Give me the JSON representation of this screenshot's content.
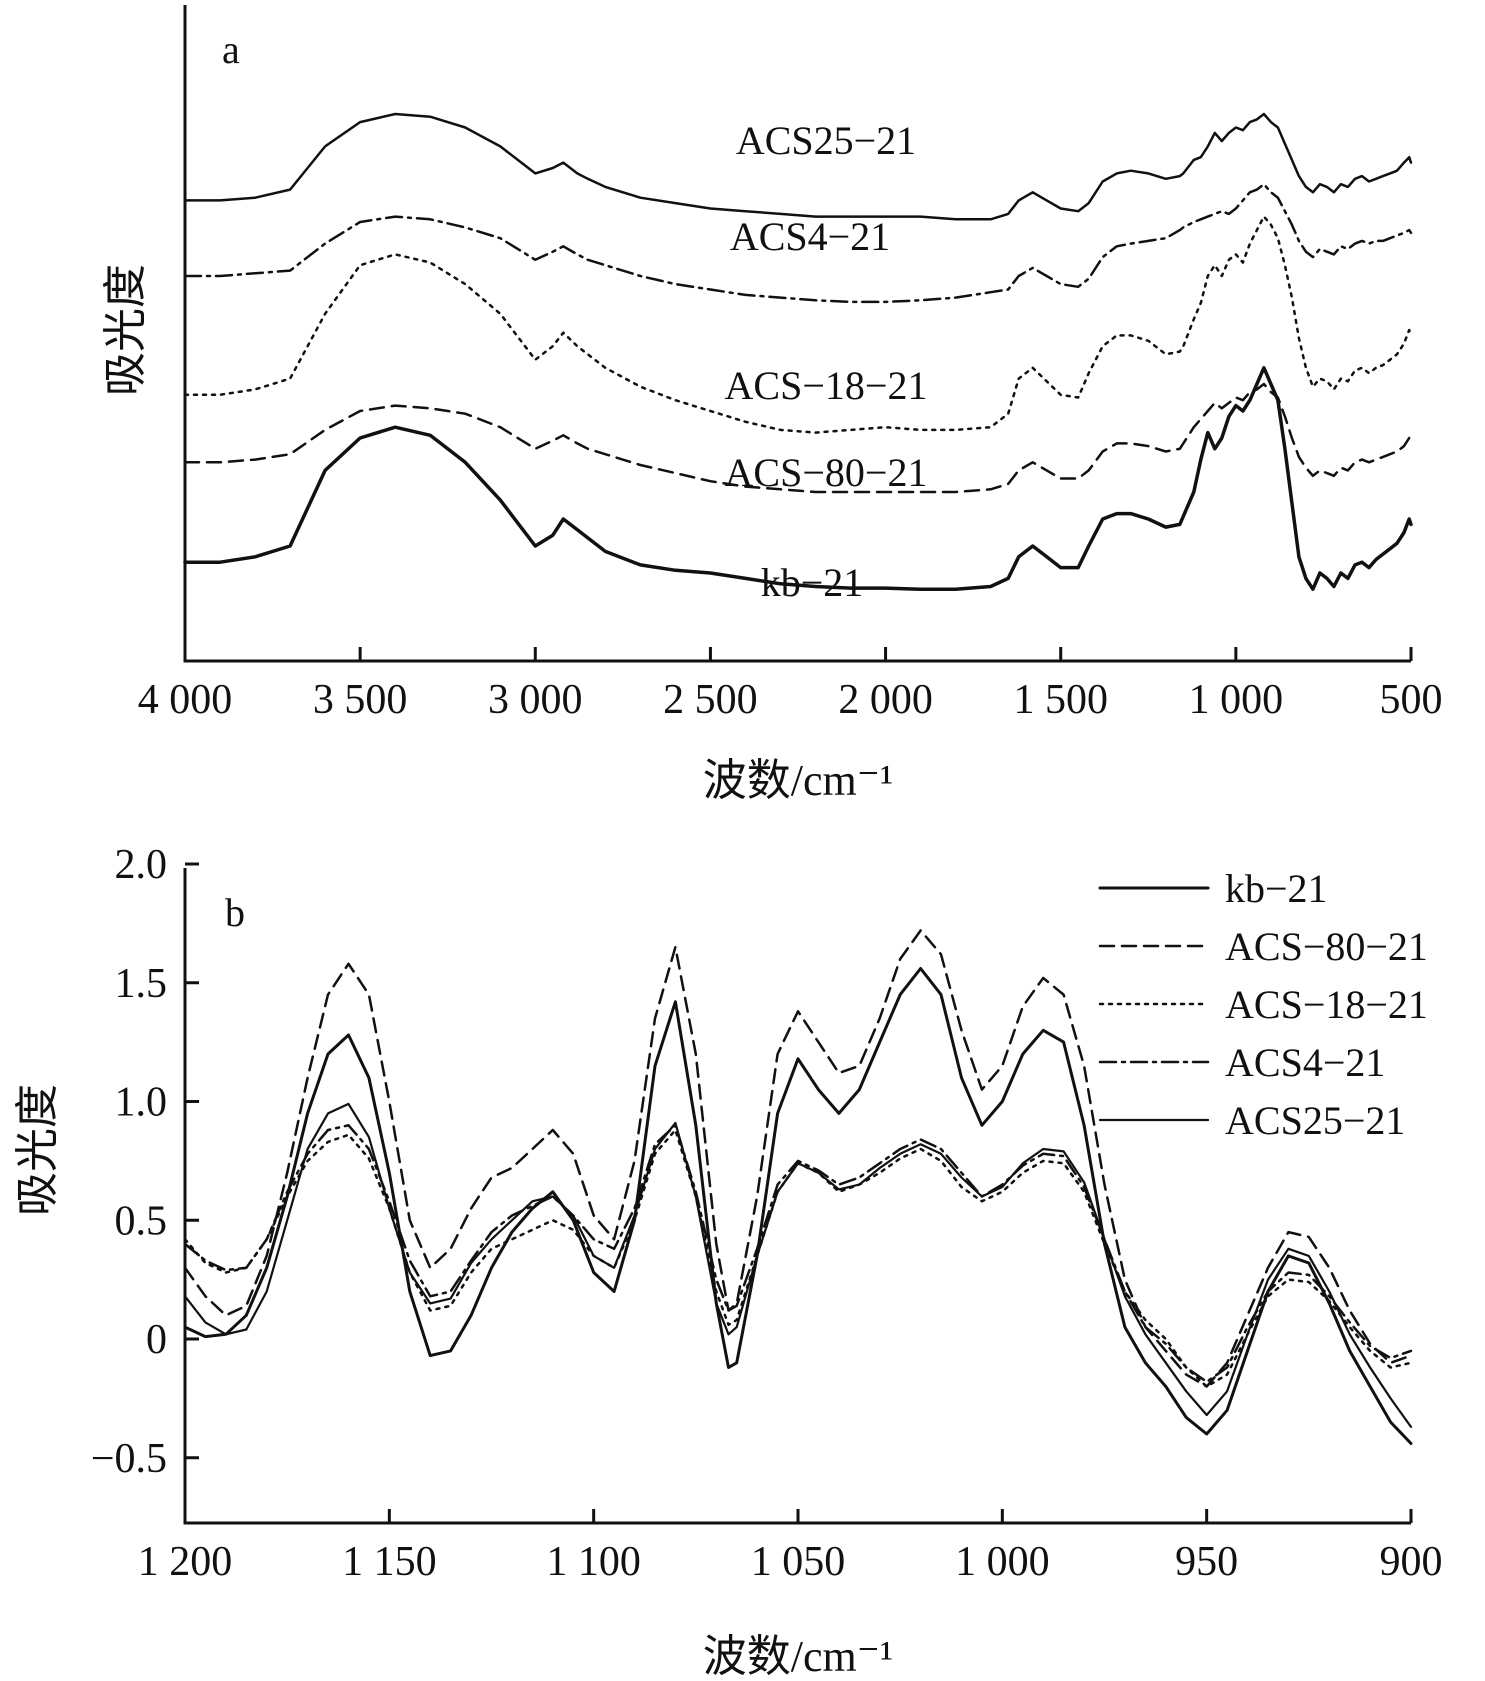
{
  "chart_data": [
    {
      "panel": "a",
      "type": "line",
      "xlabel": "波数/cm⁻¹",
      "ylabel": "吸光度",
      "xlim": [
        4000,
        500
      ],
      "x_reversed": true,
      "x_ticks": [
        4000,
        3500,
        3000,
        2500,
        2000,
        1500,
        1000,
        500
      ],
      "x_tick_labels": [
        "4 000",
        "3 500",
        "3 000",
        "2 500",
        "2 000",
        "1 500",
        "1 000",
        "500"
      ],
      "y_ticks_shown": false,
      "grid": false,
      "x": [
        4000,
        3900,
        3800,
        3700,
        3600,
        3500,
        3400,
        3300,
        3200,
        3100,
        3000,
        2950,
        2920,
        2880,
        2850,
        2800,
        2700,
        2600,
        2500,
        2400,
        2300,
        2200,
        2100,
        2000,
        1900,
        1800,
        1700,
        1650,
        1620,
        1580,
        1540,
        1500,
        1450,
        1420,
        1380,
        1340,
        1300,
        1250,
        1200,
        1160,
        1150,
        1120,
        1100,
        1080,
        1060,
        1040,
        1020,
        1000,
        980,
        960,
        940,
        920,
        900,
        880,
        860,
        840,
        820,
        800,
        780,
        760,
        740,
        720,
        700,
        680,
        660,
        640,
        620,
        600,
        580,
        560,
        540,
        520,
        505,
        500
      ],
      "series": [
        {
          "name": "ACS25-21",
          "dash": "solid",
          "stroke_width": 2.5,
          "values": [
            0.74,
            0.74,
            0.745,
            0.76,
            0.84,
            0.885,
            0.9,
            0.895,
            0.875,
            0.84,
            0.79,
            0.8,
            0.81,
            0.79,
            0.78,
            0.765,
            0.745,
            0.735,
            0.725,
            0.72,
            0.715,
            0.71,
            0.71,
            0.71,
            0.71,
            0.705,
            0.705,
            0.715,
            0.74,
            0.755,
            0.74,
            0.725,
            0.72,
            0.735,
            0.775,
            0.79,
            0.795,
            0.79,
            0.78,
            0.785,
            0.79,
            0.815,
            0.82,
            0.84,
            0.865,
            0.85,
            0.865,
            0.875,
            0.87,
            0.885,
            0.89,
            0.9,
            0.885,
            0.875,
            0.845,
            0.815,
            0.785,
            0.765,
            0.755,
            0.77,
            0.765,
            0.755,
            0.77,
            0.765,
            0.78,
            0.785,
            0.775,
            0.78,
            0.785,
            0.79,
            0.795,
            0.81,
            0.82,
            0.81
          ]
        },
        {
          "name": "ACS4-21",
          "dash": "dashdot",
          "stroke_width": 2.5,
          "values": [
            0.6,
            0.6,
            0.605,
            0.61,
            0.66,
            0.7,
            0.71,
            0.705,
            0.69,
            0.67,
            0.63,
            0.645,
            0.655,
            0.64,
            0.63,
            0.62,
            0.6,
            0.585,
            0.575,
            0.565,
            0.56,
            0.555,
            0.552,
            0.552,
            0.555,
            0.56,
            0.57,
            0.575,
            0.6,
            0.615,
            0.6,
            0.585,
            0.58,
            0.595,
            0.635,
            0.655,
            0.66,
            0.665,
            0.67,
            0.685,
            0.69,
            0.7,
            0.705,
            0.71,
            0.715,
            0.72,
            0.715,
            0.725,
            0.74,
            0.755,
            0.76,
            0.77,
            0.755,
            0.745,
            0.72,
            0.695,
            0.665,
            0.645,
            0.635,
            0.65,
            0.645,
            0.64,
            0.655,
            0.65,
            0.66,
            0.665,
            0.66,
            0.665,
            0.665,
            0.67,
            0.675,
            0.68,
            0.685,
            0.68
          ]
        },
        {
          "name": "ACS-18-21",
          "dash": "dotted",
          "stroke_width": 2.5,
          "values": [
            0.38,
            0.38,
            0.39,
            0.41,
            0.53,
            0.62,
            0.64,
            0.625,
            0.585,
            0.53,
            0.445,
            0.47,
            0.495,
            0.47,
            0.455,
            0.43,
            0.395,
            0.37,
            0.35,
            0.33,
            0.315,
            0.31,
            0.315,
            0.32,
            0.315,
            0.315,
            0.32,
            0.345,
            0.41,
            0.43,
            0.405,
            0.38,
            0.375,
            0.42,
            0.47,
            0.49,
            0.49,
            0.48,
            0.455,
            0.46,
            0.47,
            0.52,
            0.55,
            0.6,
            0.62,
            0.6,
            0.63,
            0.64,
            0.625,
            0.66,
            0.685,
            0.71,
            0.695,
            0.67,
            0.62,
            0.56,
            0.485,
            0.43,
            0.395,
            0.41,
            0.405,
            0.39,
            0.41,
            0.405,
            0.425,
            0.43,
            0.42,
            0.43,
            0.435,
            0.445,
            0.455,
            0.475,
            0.5,
            0.49
          ]
        },
        {
          "name": "ACS-80-21",
          "dash": "dashed",
          "stroke_width": 2.5,
          "values": [
            0.255,
            0.255,
            0.26,
            0.27,
            0.315,
            0.35,
            0.36,
            0.355,
            0.345,
            0.32,
            0.28,
            0.295,
            0.305,
            0.29,
            0.28,
            0.27,
            0.25,
            0.235,
            0.22,
            0.21,
            0.205,
            0.2,
            0.2,
            0.2,
            0.2,
            0.2,
            0.205,
            0.215,
            0.24,
            0.255,
            0.24,
            0.225,
            0.225,
            0.24,
            0.275,
            0.29,
            0.29,
            0.285,
            0.275,
            0.28,
            0.29,
            0.32,
            0.335,
            0.35,
            0.365,
            0.355,
            0.365,
            0.375,
            0.37,
            0.385,
            0.39,
            0.4,
            0.385,
            0.375,
            0.34,
            0.3,
            0.265,
            0.245,
            0.23,
            0.24,
            0.235,
            0.23,
            0.245,
            0.24,
            0.255,
            0.26,
            0.255,
            0.26,
            0.265,
            0.27,
            0.275,
            0.285,
            0.3,
            0.29
          ]
        },
        {
          "name": "kb-21",
          "dash": "solid",
          "stroke_width": 3.5,
          "values": [
            0.07,
            0.07,
            0.08,
            0.1,
            0.24,
            0.3,
            0.32,
            0.305,
            0.255,
            0.185,
            0.1,
            0.12,
            0.15,
            0.13,
            0.115,
            0.09,
            0.065,
            0.055,
            0.05,
            0.04,
            0.03,
            0.025,
            0.022,
            0.022,
            0.02,
            0.02,
            0.025,
            0.04,
            0.08,
            0.1,
            0.08,
            0.06,
            0.06,
            0.1,
            0.15,
            0.16,
            0.16,
            0.15,
            0.135,
            0.14,
            0.155,
            0.2,
            0.26,
            0.31,
            0.28,
            0.3,
            0.34,
            0.36,
            0.35,
            0.37,
            0.4,
            0.43,
            0.4,
            0.37,
            0.28,
            0.18,
            0.08,
            0.04,
            0.02,
            0.05,
            0.04,
            0.025,
            0.05,
            0.04,
            0.065,
            0.07,
            0.06,
            0.075,
            0.085,
            0.095,
            0.105,
            0.125,
            0.15,
            0.14
          ]
        }
      ],
      "trace_labels": [
        "ACS25−21",
        "ACS4−21",
        "ACS−18−21",
        "ACS−80−21",
        "kb−21"
      ]
    },
    {
      "panel": "b",
      "type": "line",
      "xlabel": "波数/cm⁻¹",
      "ylabel": "吸光度",
      "xlim": [
        1200,
        900
      ],
      "x_reversed": true,
      "x_ticks": [
        1200,
        1150,
        1100,
        1050,
        1000,
        950,
        900
      ],
      "x_tick_labels": [
        "1 200",
        "1 150",
        "1 100",
        "1 050",
        "1 000",
        "950",
        "900"
      ],
      "ylim": [
        -0.75,
        2.0
      ],
      "y_ticks": [
        -0.5,
        0,
        0.5,
        1.0,
        1.5,
        2.0
      ],
      "y_tick_labels": [
        "−0.5",
        "0",
        "0.5",
        "1.0",
        "1.5",
        "2.0"
      ],
      "grid": false,
      "legend_position": "top-right",
      "legend_labels": [
        "kb−21",
        "ACS−80−21",
        "ACS−18−21",
        "ACS4−21",
        "ACS25−21"
      ],
      "x": [
        1200,
        1195,
        1190,
        1185,
        1180,
        1175,
        1170,
        1165,
        1160,
        1155,
        1150,
        1145,
        1140,
        1135,
        1130,
        1125,
        1120,
        1115,
        1110,
        1105,
        1100,
        1095,
        1090,
        1085,
        1080,
        1075,
        1070,
        1067,
        1065,
        1060,
        1055,
        1050,
        1045,
        1040,
        1035,
        1030,
        1025,
        1020,
        1015,
        1010,
        1005,
        1000,
        995,
        990,
        985,
        980,
        975,
        970,
        965,
        960,
        955,
        950,
        945,
        940,
        935,
        930,
        925,
        920,
        915,
        910,
        905,
        900
      ],
      "series": [
        {
          "name": "kb-21",
          "dash": "solid",
          "stroke_width": 3,
          "values": [
            0.05,
            0.01,
            0.02,
            0.1,
            0.3,
            0.6,
            0.95,
            1.2,
            1.28,
            1.1,
            0.7,
            0.2,
            -0.07,
            -0.05,
            0.1,
            0.3,
            0.45,
            0.55,
            0.62,
            0.5,
            0.28,
            0.2,
            0.5,
            1.15,
            1.42,
            0.9,
            0.15,
            -0.12,
            -0.1,
            0.35,
            0.95,
            1.18,
            1.05,
            0.95,
            1.05,
            1.25,
            1.45,
            1.56,
            1.45,
            1.1,
            0.9,
            1.0,
            1.2,
            1.3,
            1.25,
            0.9,
            0.4,
            0.05,
            -0.1,
            -0.2,
            -0.33,
            -0.4,
            -0.3,
            -0.05,
            0.2,
            0.35,
            0.32,
            0.15,
            -0.05,
            -0.2,
            -0.35,
            -0.44
          ]
        },
        {
          "name": "ACS-80-21",
          "dash": "dashed",
          "stroke_width": 2.5,
          "values": [
            0.3,
            0.18,
            0.1,
            0.14,
            0.35,
            0.7,
            1.1,
            1.45,
            1.58,
            1.45,
            1.0,
            0.5,
            0.3,
            0.38,
            0.55,
            0.68,
            0.72,
            0.8,
            0.88,
            0.78,
            0.52,
            0.42,
            0.75,
            1.35,
            1.65,
            1.2,
            0.4,
            0.12,
            0.15,
            0.6,
            1.2,
            1.38,
            1.25,
            1.12,
            1.15,
            1.35,
            1.6,
            1.72,
            1.62,
            1.3,
            1.05,
            1.15,
            1.4,
            1.52,
            1.45,
            1.15,
            0.65,
            0.25,
            0.05,
            -0.05,
            -0.15,
            -0.2,
            -0.1,
            0.1,
            0.3,
            0.45,
            0.43,
            0.3,
            0.12,
            -0.02,
            -0.1,
            -0.07
          ]
        },
        {
          "name": "ACS-18-21",
          "dash": "dotted",
          "stroke_width": 2.5,
          "values": [
            0.42,
            0.32,
            0.28,
            0.3,
            0.42,
            0.6,
            0.75,
            0.83,
            0.86,
            0.76,
            0.55,
            0.28,
            0.12,
            0.14,
            0.28,
            0.38,
            0.42,
            0.46,
            0.5,
            0.46,
            0.35,
            0.3,
            0.5,
            0.78,
            0.88,
            0.6,
            0.2,
            0.06,
            0.08,
            0.35,
            0.62,
            0.74,
            0.7,
            0.62,
            0.65,
            0.7,
            0.76,
            0.8,
            0.75,
            0.64,
            0.58,
            0.62,
            0.7,
            0.75,
            0.74,
            0.62,
            0.4,
            0.2,
            0.08,
            0.0,
            -0.12,
            -0.2,
            -0.15,
            0.02,
            0.18,
            0.25,
            0.24,
            0.16,
            0.05,
            -0.05,
            -0.12,
            -0.1
          ]
        },
        {
          "name": "ACS4-21",
          "dash": "dashdot",
          "stroke_width": 2.5,
          "values": [
            0.4,
            0.33,
            0.29,
            0.3,
            0.42,
            0.62,
            0.78,
            0.88,
            0.9,
            0.8,
            0.58,
            0.33,
            0.18,
            0.2,
            0.33,
            0.45,
            0.52,
            0.56,
            0.6,
            0.52,
            0.42,
            0.38,
            0.55,
            0.82,
            0.9,
            0.62,
            0.25,
            0.12,
            0.14,
            0.38,
            0.65,
            0.75,
            0.71,
            0.65,
            0.68,
            0.74,
            0.8,
            0.84,
            0.8,
            0.7,
            0.6,
            0.65,
            0.73,
            0.78,
            0.77,
            0.64,
            0.42,
            0.2,
            0.05,
            -0.02,
            -0.12,
            -0.18,
            -0.12,
            0.05,
            0.2,
            0.28,
            0.27,
            0.18,
            0.07,
            -0.03,
            -0.08,
            -0.05
          ]
        },
        {
          "name": "ACS25-21",
          "dash": "solid",
          "stroke_width": 2.2,
          "values": [
            0.18,
            0.07,
            0.02,
            0.04,
            0.2,
            0.5,
            0.8,
            0.95,
            0.99,
            0.85,
            0.55,
            0.28,
            0.15,
            0.17,
            0.32,
            0.42,
            0.5,
            0.58,
            0.6,
            0.52,
            0.35,
            0.3,
            0.52,
            0.8,
            0.91,
            0.6,
            0.15,
            0.02,
            0.05,
            0.35,
            0.62,
            0.74,
            0.7,
            0.63,
            0.65,
            0.72,
            0.78,
            0.82,
            0.78,
            0.68,
            0.6,
            0.64,
            0.74,
            0.8,
            0.79,
            0.66,
            0.42,
            0.18,
            0.02,
            -0.1,
            -0.22,
            -0.32,
            -0.22,
            0.02,
            0.25,
            0.38,
            0.35,
            0.2,
            0.02,
            -0.12,
            -0.25,
            -0.37
          ]
        }
      ]
    }
  ]
}
